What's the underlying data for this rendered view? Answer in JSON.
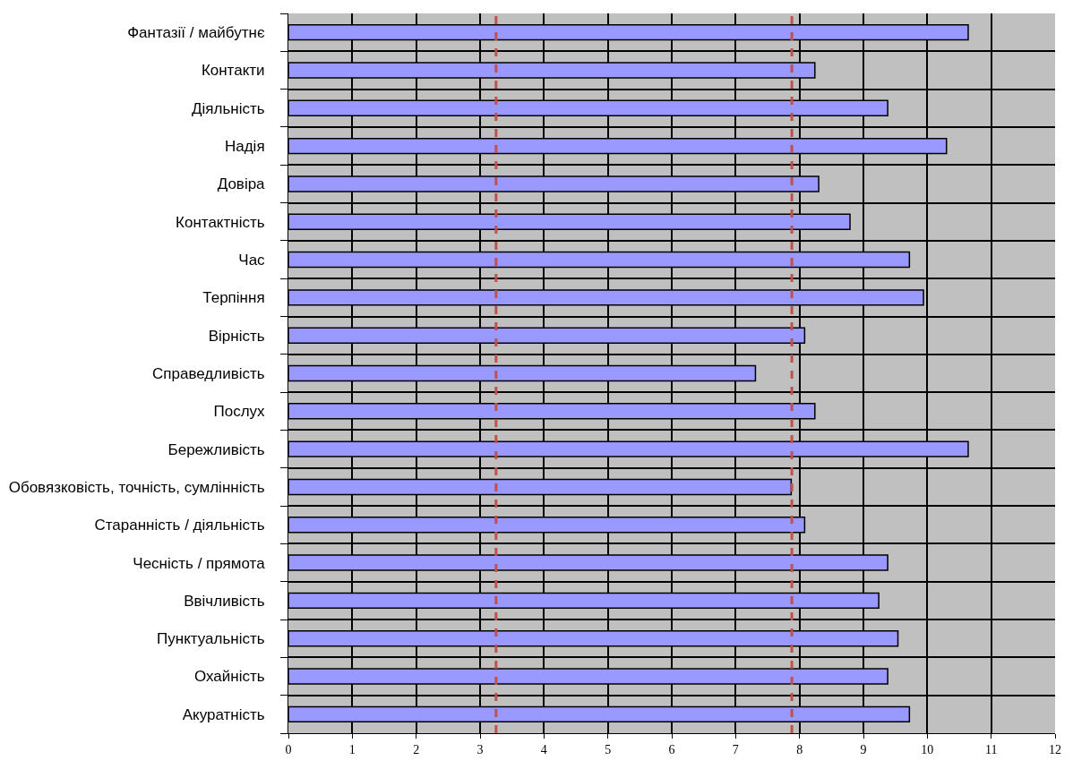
{
  "chart_data": {
    "type": "bar",
    "orientation": "horizontal",
    "categories": [
      "Фантазії / майбутнє",
      "Контакти",
      "Діяльність",
      "Надія",
      "Довіра",
      "Контактність",
      "Час",
      "Терпіння",
      "Вірність",
      "Справедливість",
      "Послух",
      "Бережливість",
      "Обовязковість, точність, сумлінність",
      "Старанність / діяльність",
      "Чесність / прямота",
      "Ввічливість",
      "Пунктуальність",
      "Охайність",
      "Акуратність"
    ],
    "values": [
      10.64,
      8.24,
      9.38,
      10.3,
      8.3,
      8.79,
      9.72,
      9.94,
      8.08,
      7.31,
      8.24,
      10.64,
      7.87,
      8.08,
      9.38,
      9.24,
      9.54,
      9.38,
      9.72
    ],
    "color": "#9999ff",
    "xlim": [
      0,
      12
    ],
    "xticks": [
      0,
      1,
      2,
      3,
      4,
      5,
      6,
      7,
      8,
      9,
      10,
      11,
      12
    ],
    "grid": true,
    "ref_lines": [
      {
        "axis": "x",
        "value": 3.25,
        "color": "#c0504d",
        "line_style": "dashed"
      },
      {
        "axis": "x",
        "value": 7.88,
        "color": "#c0504d",
        "line_style": "dashed"
      }
    ]
  }
}
